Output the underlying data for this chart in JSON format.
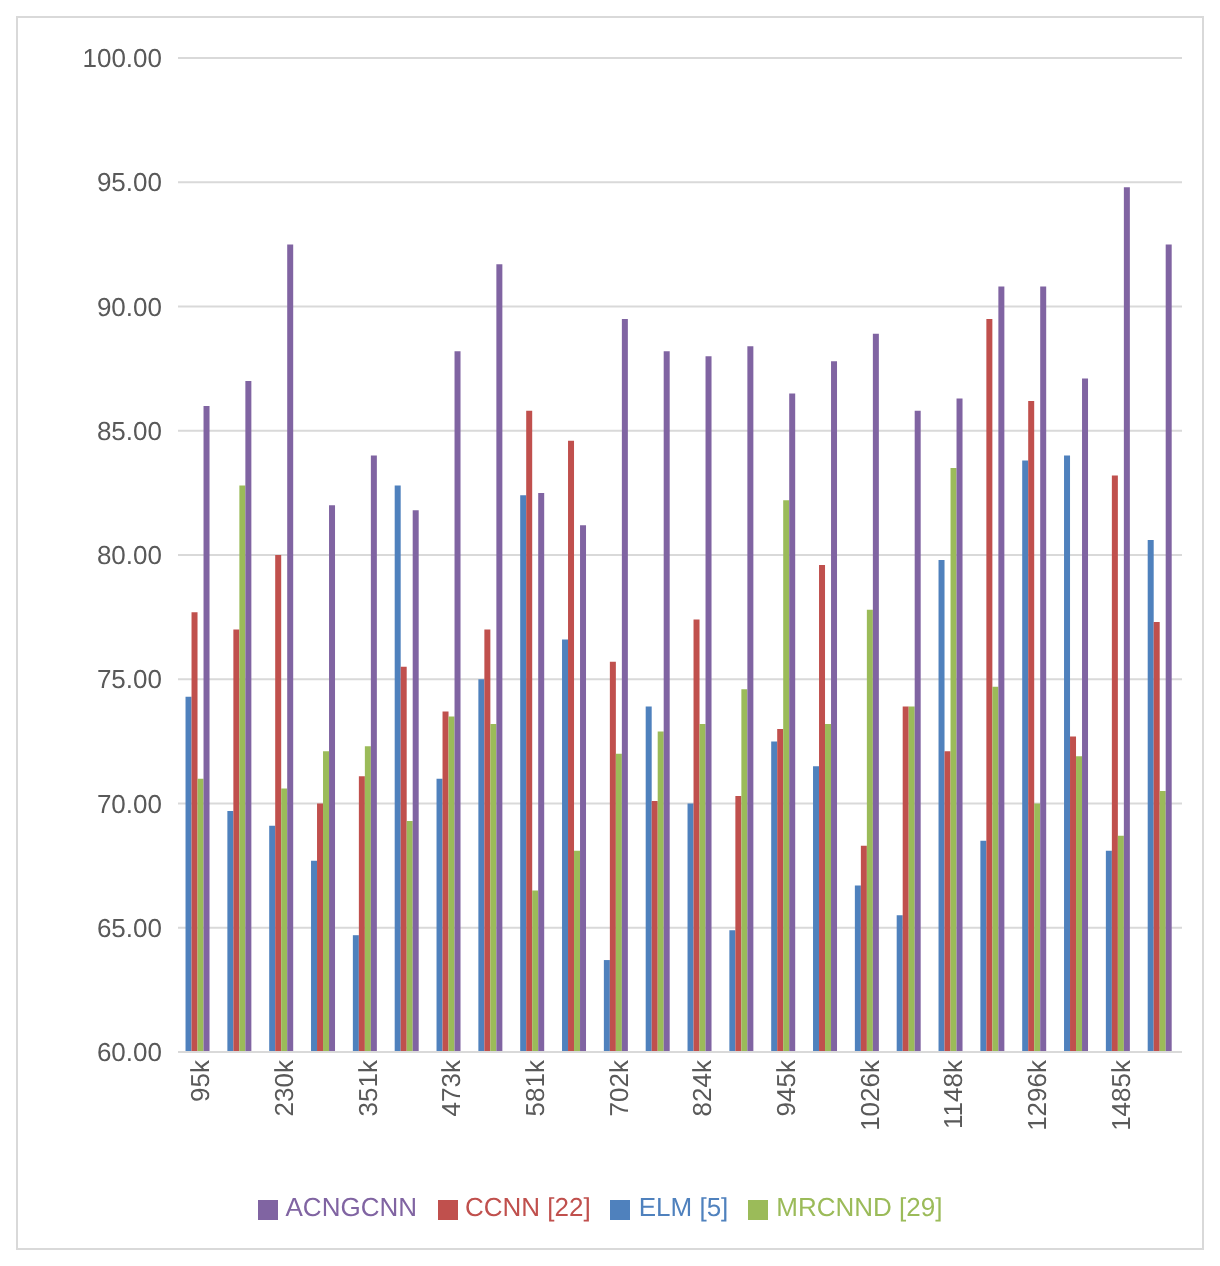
{
  "chart_data": {
    "type": "bar",
    "categories": [
      "95k",
      null,
      "230k",
      null,
      "351k",
      null,
      "473k",
      null,
      "581k",
      null,
      "702k",
      null,
      "824k",
      null,
      "945k",
      null,
      "1026k",
      null,
      "1148k",
      null,
      "1296k",
      null,
      "1485k",
      null
    ],
    "series": [
      {
        "name": "ELM [5]",
        "color": "#4f81bd",
        "values": [
          74.3,
          69.7,
          69.1,
          67.7,
          64.7,
          82.8,
          71.0,
          75.0,
          82.4,
          76.6,
          63.7,
          73.9,
          70.0,
          64.9,
          72.5,
          71.5,
          66.7,
          65.5,
          79.8,
          68.5,
          83.8,
          84.0,
          68.1,
          80.6
        ]
      },
      {
        "name": "CCNN [22]",
        "color": "#c0504d",
        "values": [
          77.7,
          77.0,
          80.0,
          70.0,
          71.1,
          75.5,
          73.7,
          77.0,
          85.8,
          84.6,
          75.7,
          70.1,
          77.4,
          70.3,
          73.0,
          79.6,
          68.3,
          73.9,
          72.1,
          89.5,
          86.2,
          72.7,
          83.2,
          77.3
        ]
      },
      {
        "name": "MRCNND [29]",
        "color": "#9bbb59",
        "values": [
          71.0,
          82.8,
          70.6,
          72.1,
          72.3,
          69.3,
          73.5,
          73.2,
          66.5,
          68.1,
          72.0,
          72.9,
          73.2,
          74.6,
          82.2,
          73.2,
          77.8,
          73.9,
          83.5,
          74.7,
          70.0,
          71.9,
          68.7,
          70.5
        ]
      },
      {
        "name": "ACNGCNN",
        "color": "#8064a2",
        "values": [
          86.0,
          87.0,
          92.5,
          82.0,
          84.0,
          81.8,
          88.2,
          91.7,
          82.5,
          81.2,
          89.5,
          88.2,
          88.0,
          88.4,
          86.5,
          87.8,
          88.9,
          85.8,
          86.3,
          90.8,
          90.8,
          87.1,
          94.8,
          92.5
        ]
      }
    ],
    "ylim": [
      60,
      100
    ],
    "yticks": [
      {
        "value": 60,
        "label": "60.00"
      },
      {
        "value": 65,
        "label": "65.00"
      },
      {
        "value": 70,
        "label": "70.00"
      },
      {
        "value": 75,
        "label": "75.00"
      },
      {
        "value": 80,
        "label": "80.00"
      },
      {
        "value": 85,
        "label": "85.00"
      },
      {
        "value": 90,
        "label": "90.00"
      },
      {
        "value": 95,
        "label": "95.00"
      },
      {
        "value": 100,
        "label": "100.00"
      }
    ],
    "grid": "y",
    "legend": "bottom"
  }
}
